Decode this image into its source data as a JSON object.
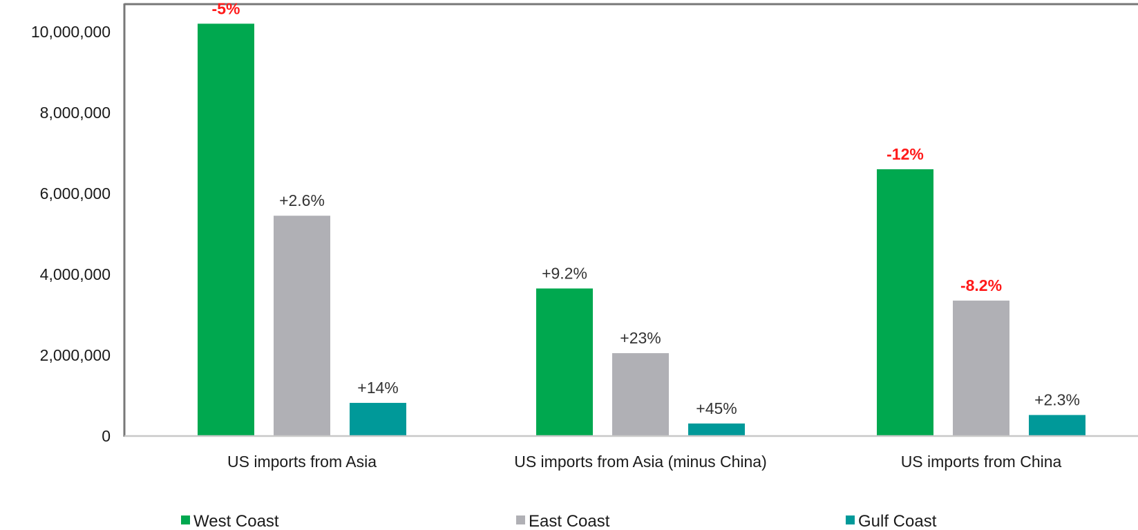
{
  "chart_data": {
    "type": "bar",
    "title": "",
    "xlabel": "",
    "ylabel": "",
    "ylim": [
      0,
      10000000
    ],
    "y_ticks": [
      "0",
      "2,000,000",
      "4,000,000",
      "6,000,000",
      "8,000,000",
      "10,000,000"
    ],
    "y_tick_values": [
      0,
      2000000,
      4000000,
      6000000,
      8000000,
      10000000
    ],
    "categories": [
      "US imports from Asia",
      "US imports from Asia (minus China)",
      "US imports from China"
    ],
    "series": [
      {
        "name": "West Coast",
        "color": "#00a84f",
        "values": [
          10200000,
          3650000,
          6600000
        ],
        "labels": [
          "-5%",
          "+9.2%",
          "-12%"
        ],
        "label_colors": [
          "#ff1a1a",
          "#333333",
          "#ff1a1a"
        ]
      },
      {
        "name": "East Coast",
        "color": "#b0b0b5",
        "values": [
          5450000,
          2050000,
          3350000
        ],
        "labels": [
          "+2.6%",
          "+23%",
          "-8.2%"
        ],
        "label_colors": [
          "#333333",
          "#333333",
          "#ff1a1a"
        ]
      },
      {
        "name": "Gulf Coast",
        "color": "#009999",
        "values": [
          820000,
          310000,
          520000
        ],
        "labels": [
          "+14%",
          "+45%",
          "+2.3%"
        ],
        "label_colors": [
          "#333333",
          "#333333",
          "#333333"
        ]
      }
    ],
    "grid": false,
    "legend_position": "bottom"
  }
}
